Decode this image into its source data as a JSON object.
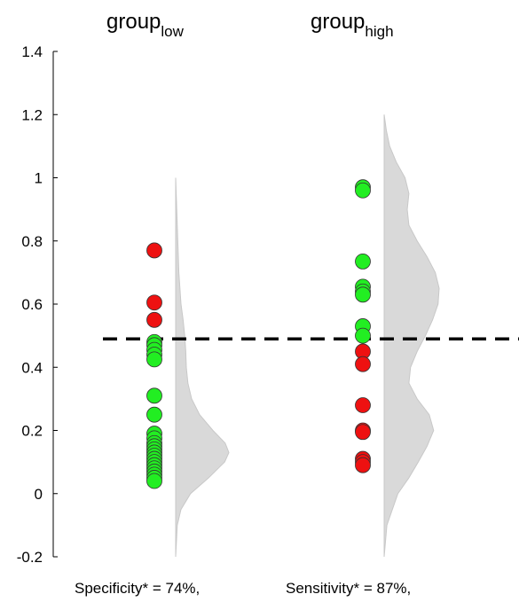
{
  "chart_data": {
    "type": "scatter",
    "ylim": [
      -0.2,
      1.4
    ],
    "yticks": [
      -0.2,
      0,
      0.2,
      0.4,
      0.6,
      0.8,
      1,
      1.2,
      1.4
    ],
    "ytick_labels": [
      "-0.2",
      "0",
      "0.2",
      "0.4",
      "0.6",
      "0.8",
      "1",
      "1.2",
      "1.4"
    ],
    "threshold": 0.49,
    "colors": {
      "pass": "#22ee22",
      "fail": "#ee1111",
      "density": "#d9d9d9",
      "threshold": "#000000"
    },
    "groups": [
      {
        "title_main": "group",
        "title_sub": "low",
        "footer": "Specificity* = 74%,",
        "points": [
          {
            "y": 0.77,
            "status": "fail"
          },
          {
            "y": 0.605,
            "status": "fail"
          },
          {
            "y": 0.55,
            "status": "fail"
          },
          {
            "y": 0.48,
            "status": "pass"
          },
          {
            "y": 0.47,
            "status": "pass"
          },
          {
            "y": 0.455,
            "status": "pass"
          },
          {
            "y": 0.44,
            "status": "pass"
          },
          {
            "y": 0.425,
            "status": "pass"
          },
          {
            "y": 0.31,
            "status": "pass"
          },
          {
            "y": 0.25,
            "status": "pass"
          },
          {
            "y": 0.19,
            "status": "pass"
          },
          {
            "y": 0.175,
            "status": "pass"
          },
          {
            "y": 0.16,
            "status": "pass"
          },
          {
            "y": 0.15,
            "status": "pass"
          },
          {
            "y": 0.14,
            "status": "pass"
          },
          {
            "y": 0.13,
            "status": "pass"
          },
          {
            "y": 0.12,
            "status": "pass"
          },
          {
            "y": 0.11,
            "status": "pass"
          },
          {
            "y": 0.1,
            "status": "pass"
          },
          {
            "y": 0.09,
            "status": "pass"
          },
          {
            "y": 0.08,
            "status": "pass"
          },
          {
            "y": 0.07,
            "status": "pass"
          },
          {
            "y": 0.06,
            "status": "pass"
          },
          {
            "y": 0.05,
            "status": "pass"
          },
          {
            "y": 0.04,
            "status": "pass"
          }
        ],
        "density": [
          [
            -0.2,
            0.0
          ],
          [
            -0.1,
            0.03
          ],
          [
            -0.05,
            0.1
          ],
          [
            0.0,
            0.28
          ],
          [
            0.05,
            0.62
          ],
          [
            0.1,
            0.92
          ],
          [
            0.13,
            1.0
          ],
          [
            0.16,
            0.93
          ],
          [
            0.2,
            0.7
          ],
          [
            0.25,
            0.45
          ],
          [
            0.3,
            0.3
          ],
          [
            0.35,
            0.23
          ],
          [
            0.4,
            0.2
          ],
          [
            0.45,
            0.19
          ],
          [
            0.5,
            0.17
          ],
          [
            0.55,
            0.14
          ],
          [
            0.6,
            0.1
          ],
          [
            0.7,
            0.06
          ],
          [
            0.8,
            0.04
          ],
          [
            0.9,
            0.02
          ],
          [
            1.0,
            0.0
          ]
        ]
      },
      {
        "title_main": "group",
        "title_sub": "high",
        "footer": "Sensitivity* = 87%,",
        "points": [
          {
            "y": 0.97,
            "status": "pass"
          },
          {
            "y": 0.96,
            "status": "pass"
          },
          {
            "y": 0.735,
            "status": "pass"
          },
          {
            "y": 0.655,
            "status": "pass"
          },
          {
            "y": 0.64,
            "status": "pass"
          },
          {
            "y": 0.63,
            "status": "pass"
          },
          {
            "y": 0.53,
            "status": "pass"
          },
          {
            "y": 0.5,
            "status": "pass"
          },
          {
            "y": 0.45,
            "status": "fail"
          },
          {
            "y": 0.41,
            "status": "fail"
          },
          {
            "y": 0.28,
            "status": "fail"
          },
          {
            "y": 0.2,
            "status": "fail"
          },
          {
            "y": 0.195,
            "status": "fail"
          },
          {
            "y": 0.11,
            "status": "fail"
          },
          {
            "y": 0.1,
            "status": "fail"
          },
          {
            "y": 0.09,
            "status": "fail"
          }
        ],
        "density": [
          [
            -0.2,
            0.0
          ],
          [
            -0.1,
            0.05
          ],
          [
            0.0,
            0.25
          ],
          [
            0.05,
            0.45
          ],
          [
            0.1,
            0.62
          ],
          [
            0.15,
            0.78
          ],
          [
            0.2,
            0.9
          ],
          [
            0.25,
            0.82
          ],
          [
            0.3,
            0.6
          ],
          [
            0.35,
            0.45
          ],
          [
            0.4,
            0.48
          ],
          [
            0.45,
            0.6
          ],
          [
            0.5,
            0.75
          ],
          [
            0.55,
            0.88
          ],
          [
            0.6,
            0.98
          ],
          [
            0.65,
            1.0
          ],
          [
            0.7,
            0.93
          ],
          [
            0.75,
            0.78
          ],
          [
            0.8,
            0.6
          ],
          [
            0.85,
            0.45
          ],
          [
            0.9,
            0.42
          ],
          [
            0.95,
            0.45
          ],
          [
            1.0,
            0.38
          ],
          [
            1.05,
            0.22
          ],
          [
            1.1,
            0.1
          ],
          [
            1.15,
            0.04
          ],
          [
            1.2,
            0.0
          ]
        ]
      }
    ]
  }
}
